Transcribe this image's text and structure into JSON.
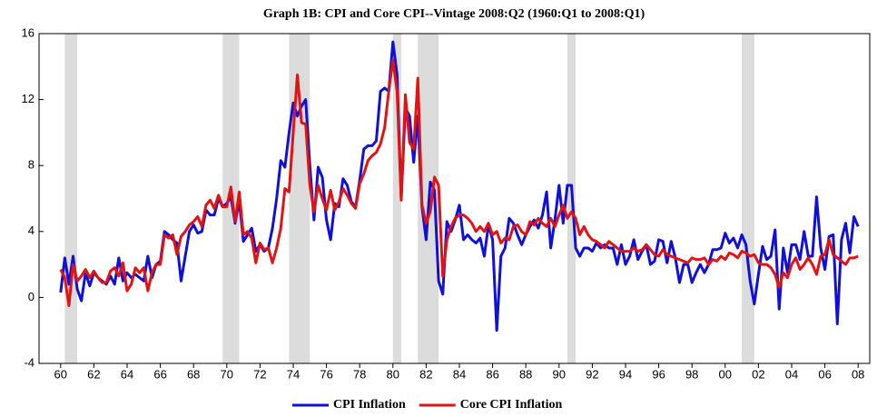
{
  "chart_data": {
    "type": "line",
    "title": "Graph 1B:  CPI and Core CPI--Vintage 2008:Q2 (1960:Q1 to 2008:Q1)",
    "x": [
      1960,
      1960.25,
      1960.5,
      1960.75,
      1961,
      1961.25,
      1961.5,
      1961.75,
      1962,
      1962.25,
      1962.5,
      1962.75,
      1963,
      1963.25,
      1963.5,
      1963.75,
      1964,
      1964.25,
      1964.5,
      1964.75,
      1965,
      1965.25,
      1965.5,
      1965.75,
      1966,
      1966.25,
      1966.5,
      1966.75,
      1967,
      1967.25,
      1967.5,
      1967.75,
      1968,
      1968.25,
      1968.5,
      1968.75,
      1969,
      1969.25,
      1969.5,
      1969.75,
      1970,
      1970.25,
      1970.5,
      1970.75,
      1971,
      1971.25,
      1971.5,
      1971.75,
      1972,
      1972.25,
      1972.5,
      1972.75,
      1973,
      1973.25,
      1973.5,
      1973.75,
      1974,
      1974.25,
      1974.5,
      1974.75,
      1975,
      1975.25,
      1975.5,
      1975.75,
      1976,
      1976.25,
      1976.5,
      1976.75,
      1977,
      1977.25,
      1977.5,
      1977.75,
      1978,
      1978.25,
      1978.5,
      1978.75,
      1979,
      1979.25,
      1979.5,
      1979.75,
      1980,
      1980.25,
      1980.5,
      1980.75,
      1981,
      1981.25,
      1981.5,
      1981.75,
      1982,
      1982.25,
      1982.5,
      1982.75,
      1983,
      1983.25,
      1983.5,
      1983.75,
      1984,
      1984.25,
      1984.5,
      1984.75,
      1985,
      1985.25,
      1985.5,
      1985.75,
      1986,
      1986.25,
      1986.5,
      1986.75,
      1987,
      1987.25,
      1987.5,
      1987.75,
      1988,
      1988.25,
      1988.5,
      1988.75,
      1989,
      1989.25,
      1989.5,
      1989.75,
      1990,
      1990.25,
      1990.5,
      1990.75,
      1991,
      1991.25,
      1991.5,
      1991.75,
      1992,
      1992.25,
      1992.5,
      1992.75,
      1993,
      1993.25,
      1993.5,
      1993.75,
      1994,
      1994.25,
      1994.5,
      1994.75,
      1995,
      1995.25,
      1995.5,
      1995.75,
      1996,
      1996.25,
      1996.5,
      1996.75,
      1997,
      1997.25,
      1997.5,
      1997.75,
      1998,
      1998.25,
      1998.5,
      1998.75,
      1999,
      1999.25,
      1999.5,
      1999.75,
      2000,
      2000.25,
      2000.5,
      2000.75,
      2001,
      2001.25,
      2001.5,
      2001.75,
      2002,
      2002.25,
      2002.5,
      2002.75,
      2003,
      2003.25,
      2003.5,
      2003.75,
      2004,
      2004.25,
      2004.5,
      2004.75,
      2005,
      2005.25,
      2005.5,
      2005.75,
      2006,
      2006.25,
      2006.5,
      2006.75,
      2007,
      2007.25,
      2007.5,
      2007.75,
      2008
    ],
    "series": [
      {
        "name": "CPI Inflation",
        "color": "#1010d8",
        "values": [
          0.3,
          2.4,
          0.8,
          2.5,
          0.5,
          -0.2,
          1.5,
          0.7,
          1.5,
          1.2,
          1.0,
          0.8,
          1.3,
          0.8,
          2.4,
          1.0,
          1.5,
          1.2,
          1.4,
          1.2,
          1.0,
          2.5,
          1.2,
          2.0,
          2.2,
          4.0,
          3.8,
          3.5,
          3.3,
          1.0,
          2.5,
          4.0,
          4.4,
          3.9,
          4.0,
          5.3,
          5.0,
          5.0,
          6.0,
          5.5,
          5.7,
          6.1,
          4.5,
          5.9,
          3.4,
          3.8,
          4.2,
          2.8,
          3.2,
          2.8,
          3.0,
          4.2,
          6.0,
          8.3,
          7.9,
          10.0,
          11.8,
          11.0,
          11.6,
          12.0,
          8.0,
          4.7,
          7.9,
          7.3,
          4.7,
          3.5,
          5.7,
          5.5,
          7.2,
          6.8,
          5.8,
          5.5,
          7.1,
          9.0,
          9.2,
          9.2,
          9.5,
          12.5,
          12.7,
          12.5,
          15.5,
          13.5,
          6.0,
          11.5,
          11.0,
          8.2,
          11.0,
          5.5,
          3.5,
          7.0,
          6.5,
          1.0,
          0.2,
          4.6,
          4.0,
          4.7,
          5.6,
          3.5,
          3.8,
          3.5,
          3.3,
          3.6,
          2.5,
          4.4,
          3.5,
          -2.0,
          2.5,
          3.0,
          4.8,
          4.5,
          3.8,
          3.2,
          3.8,
          4.3,
          4.7,
          4.2,
          5.0,
          6.4,
          3.0,
          4.7,
          6.8,
          4.5,
          6.8,
          6.8,
          3.0,
          2.5,
          3.0,
          3.0,
          2.8,
          3.3,
          3.0,
          3.2,
          3.0,
          3.0,
          2.0,
          3.2,
          2.0,
          2.5,
          3.5,
          2.3,
          2.8,
          3.2,
          2.0,
          2.2,
          3.5,
          3.4,
          2.1,
          3.4,
          2.4,
          0.9,
          2.0,
          2.0,
          0.9,
          1.5,
          2.0,
          1.5,
          2.0,
          2.9,
          2.9,
          3.0,
          3.9,
          3.3,
          3.6,
          3.0,
          3.8,
          3.2,
          1.0,
          -0.4,
          1.4,
          3.1,
          2.3,
          2.5,
          4.1,
          -0.7,
          3.0,
          1.5,
          3.2,
          3.2,
          2.3,
          4.0,
          2.5,
          2.5,
          6.1,
          3.0,
          1.7,
          3.7,
          3.8,
          -1.6,
          3.5,
          4.5,
          2.7,
          4.9,
          4.3
        ]
      },
      {
        "name": "Core CPI Inflation",
        "color": "#e01414",
        "values": [
          1.7,
          1.2,
          -0.5,
          2.0,
          1.0,
          1.3,
          1.7,
          1.2,
          1.6,
          1.2,
          0.9,
          0.9,
          1.6,
          1.8,
          1.3,
          2.1,
          0.4,
          0.8,
          1.8,
          1.5,
          1.8,
          0.4,
          1.5,
          2.0,
          2.0,
          3.8,
          3.6,
          3.8,
          2.6,
          3.7,
          4.0,
          4.4,
          4.6,
          4.9,
          4.3,
          5.6,
          5.9,
          5.4,
          6.2,
          5.5,
          5.5,
          6.7,
          4.6,
          6.4,
          3.8,
          4.0,
          3.6,
          2.1,
          3.3,
          2.9,
          3.0,
          2.1,
          3.0,
          4.2,
          6.6,
          6.4,
          10.0,
          13.5,
          10.6,
          10.5,
          6.8,
          5.2,
          6.8,
          6.0,
          5.3,
          6.5,
          5.3,
          5.8,
          6.6,
          6.2,
          5.7,
          5.4,
          6.9,
          7.5,
          8.3,
          8.6,
          8.8,
          9.3,
          10.3,
          12.5,
          14.4,
          12.5,
          5.9,
          12.3,
          9.4,
          9.0,
          13.3,
          5.6,
          4.5,
          5.2,
          7.3,
          6.8,
          1.3,
          3.5,
          4.3,
          4.8,
          5.0,
          5.0,
          4.8,
          4.5,
          4.0,
          4.3,
          4.0,
          4.5,
          3.8,
          4.0,
          3.3,
          3.6,
          3.5,
          4.3,
          4.4,
          4.0,
          3.8,
          4.6,
          4.4,
          4.8,
          4.5,
          4.3,
          4.8,
          4.3,
          5.0,
          5.6,
          4.8,
          5.2,
          4.8,
          3.8,
          4.3,
          3.8,
          3.5,
          3.4,
          3.2,
          3.0,
          3.4,
          3.2,
          3.0,
          2.8,
          2.8,
          2.8,
          3.0,
          2.8,
          2.9,
          3.2,
          2.9,
          2.6,
          2.5,
          2.9,
          2.6,
          2.5,
          2.4,
          2.3,
          2.2,
          2.1,
          2.4,
          2.3,
          2.3,
          2.4,
          2.0,
          2.3,
          2.2,
          2.5,
          2.3,
          2.7,
          2.6,
          2.4,
          2.8,
          2.7,
          2.5,
          2.6,
          2.1,
          2.0,
          2.0,
          1.8,
          1.4,
          0.6,
          1.5,
          1.2,
          2.0,
          2.4,
          1.7,
          2.0,
          2.4,
          2.0,
          1.4,
          2.5,
          2.6,
          3.5,
          2.6,
          2.4,
          2.2,
          2.0,
          2.4,
          2.4,
          2.5
        ]
      }
    ],
    "recessions": [
      [
        1960.25,
        1961.0
      ],
      [
        1969.75,
        1970.75
      ],
      [
        1973.75,
        1975.0
      ],
      [
        1980.0,
        1980.5
      ],
      [
        1981.5,
        1982.75
      ],
      [
        1990.5,
        1991.0
      ],
      [
        2001.0,
        2001.75
      ]
    ],
    "recession_color": "#dcdcdc",
    "xlim": [
      1958.7,
      2008.7
    ],
    "xticks": [
      {
        "value": 1960,
        "label": "60"
      },
      {
        "value": 1962,
        "label": "62"
      },
      {
        "value": 1964,
        "label": "64"
      },
      {
        "value": 1966,
        "label": "66"
      },
      {
        "value": 1968,
        "label": "68"
      },
      {
        "value": 1970,
        "label": "70"
      },
      {
        "value": 1972,
        "label": "72"
      },
      {
        "value": 1974,
        "label": "74"
      },
      {
        "value": 1976,
        "label": "76"
      },
      {
        "value": 1978,
        "label": "78"
      },
      {
        "value": 1980,
        "label": "80"
      },
      {
        "value": 1982,
        "label": "82"
      },
      {
        "value": 1984,
        "label": "84"
      },
      {
        "value": 1986,
        "label": "86"
      },
      {
        "value": 1988,
        "label": "88"
      },
      {
        "value": 1990,
        "label": "90"
      },
      {
        "value": 1992,
        "label": "92"
      },
      {
        "value": 1994,
        "label": "94"
      },
      {
        "value": 1996,
        "label": "96"
      },
      {
        "value": 1998,
        "label": "98"
      },
      {
        "value": 2000,
        "label": "00"
      },
      {
        "value": 2002,
        "label": "02"
      },
      {
        "value": 2004,
        "label": "04"
      },
      {
        "value": 2006,
        "label": "06"
      },
      {
        "value": 2008,
        "label": "08"
      }
    ],
    "ylim": [
      -4,
      16
    ],
    "yticks": [
      -4,
      0,
      4,
      8,
      12,
      16
    ],
    "grid": false
  }
}
